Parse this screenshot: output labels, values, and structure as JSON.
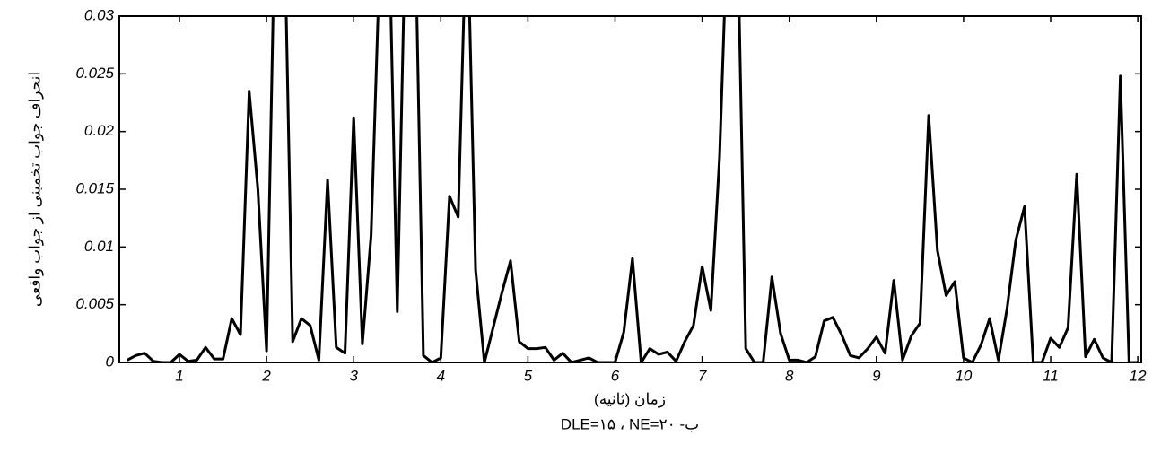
{
  "chart_data": {
    "type": "line",
    "ylabel": "انحراف جواب تخمینی از جواب واقعی",
    "xlabel": "زمان (ثانیه)",
    "caption": "ب- DLE=۱۵ ، NE=۲۰",
    "xlim": [
      0.31,
      12.04
    ],
    "ylim": [
      0,
      0.03
    ],
    "xticks": [
      1,
      2,
      3,
      4,
      5,
      6,
      7,
      8,
      9,
      10,
      11,
      12
    ],
    "yticks": [
      0,
      0.005,
      0.01,
      0.015,
      0.02,
      0.025,
      0.03
    ],
    "grid": false,
    "x": [
      0.4,
      0.5,
      0.6,
      0.7,
      0.8,
      0.9,
      1.0,
      1.1,
      1.2,
      1.3,
      1.4,
      1.5,
      1.6,
      1.7,
      1.8,
      1.9,
      2.0,
      2.1,
      2.2,
      2.3,
      2.4,
      2.5,
      2.6,
      2.7,
      2.8,
      2.9,
      3.0,
      3.1,
      3.2,
      3.3,
      3.4,
      3.5,
      3.6,
      3.7,
      3.8,
      3.9,
      4.0,
      4.1,
      4.2,
      4.3,
      4.4,
      4.5,
      4.6,
      4.7,
      4.8,
      4.9,
      5.0,
      5.1,
      5.2,
      5.3,
      5.4,
      5.5,
      5.6,
      5.7,
      5.8,
      5.9,
      6.0,
      6.1,
      6.2,
      6.3,
      6.4,
      6.5,
      6.6,
      6.7,
      6.8,
      6.9,
      7.0,
      7.1,
      7.2,
      7.3,
      7.4,
      7.5,
      7.6,
      7.7,
      7.8,
      7.9,
      8.0,
      8.1,
      8.2,
      8.3,
      8.4,
      8.5,
      8.6,
      8.7,
      8.8,
      8.9,
      9.0,
      9.1,
      9.2,
      9.3,
      9.4,
      9.5,
      9.6,
      9.7,
      9.8,
      9.9,
      10.0,
      10.1,
      10.2,
      10.3,
      10.4,
      10.5,
      10.6,
      10.7,
      10.8,
      10.9,
      11.0,
      11.1,
      11.2,
      11.3,
      11.4,
      11.5,
      11.6,
      11.7,
      11.8,
      11.9,
      12.0
    ],
    "series": [
      {
        "color": "#000000",
        "values": [
          0.0002,
          0.0006,
          0.0008,
          0.0001,
          0,
          0,
          0.0007,
          0.0001,
          0.0002,
          0.0013,
          0.0003,
          0.0003,
          0.0038,
          0.0024,
          0.0235,
          0.015,
          0.001,
          0.04,
          0.04,
          0.0018,
          0.0038,
          0.0032,
          0.0002,
          0.0158,
          0.0013,
          0.0008,
          0.0212,
          0.0016,
          0.011,
          0.035,
          0.04,
          0.0044,
          0.04,
          0.04,
          0.0006,
          0,
          0.0004,
          0.0144,
          0.0126,
          0.04,
          0.008,
          0,
          0.003,
          0.006,
          0.0088,
          0.0018,
          0.0012,
          0.0012,
          0.0013,
          0.0002,
          0.0008,
          0,
          0.0002,
          0.0004,
          0,
          0,
          0,
          0.0026,
          0.009,
          0,
          0.0012,
          0.0007,
          0.0009,
          0.0001,
          0.0018,
          0.0032,
          0.0083,
          0.0045,
          0.0178,
          0.04,
          0.04,
          0.0012,
          0,
          0,
          0.0074,
          0.0025,
          0.0002,
          0.0002,
          0,
          0.0005,
          0.0036,
          0.0039,
          0.0024,
          0.0006,
          0.0004,
          0.0012,
          0.0022,
          0.0008,
          0.0071,
          0.0002,
          0.0023,
          0.0034,
          0.0214,
          0.0097,
          0.0058,
          0.007,
          0.0004,
          0,
          0.0015,
          0.0038,
          0.0002,
          0.0047,
          0.0106,
          0.0135,
          0,
          0,
          0.0021,
          0.0013,
          0.003,
          0.0163,
          0.0005,
          0.002,
          0.0004,
          0,
          0.0248,
          0,
          0
        ]
      }
    ]
  }
}
